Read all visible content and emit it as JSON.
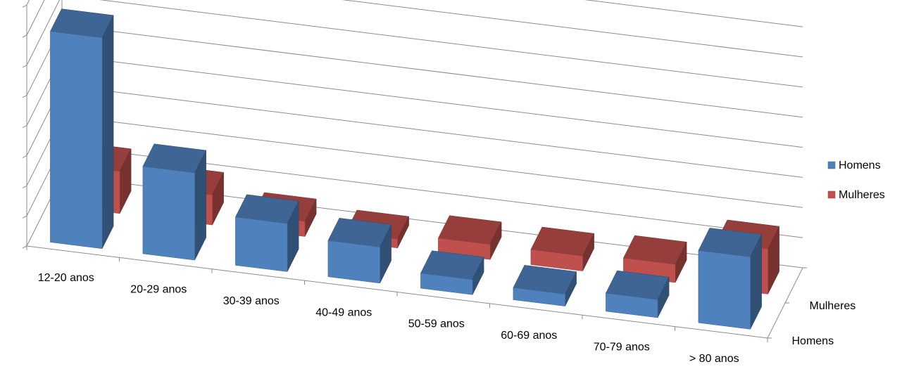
{
  "chart_data": {
    "type": "bar",
    "title": "",
    "xlabel": "",
    "ylabel": "",
    "categories": [
      "12-20 anos",
      "20-29 anos",
      "30-39 anos",
      "40-49 anos",
      "50-59 anos",
      "60-69 anos",
      "70-79 anos",
      "> 80 anos"
    ],
    "series": [
      {
        "name": "Homens",
        "values": [
          7.0,
          2.9,
          1.6,
          1.2,
          0.5,
          0.4,
          0.6,
          2.4
        ]
      },
      {
        "name": "Mulheres",
        "values": [
          1.4,
          1.0,
          0.5,
          0.3,
          0.5,
          0.5,
          0.6,
          1.5
        ]
      }
    ],
    "depth_axis_labels": [
      "Homens",
      "Mulheres"
    ],
    "legend": {
      "position": "right",
      "items": [
        "Homens",
        "Mulheres"
      ]
    },
    "colors": {
      "Homens": "#4f81bd",
      "Mulheres": "#c0504d"
    },
    "grid": true,
    "three_d": true
  }
}
